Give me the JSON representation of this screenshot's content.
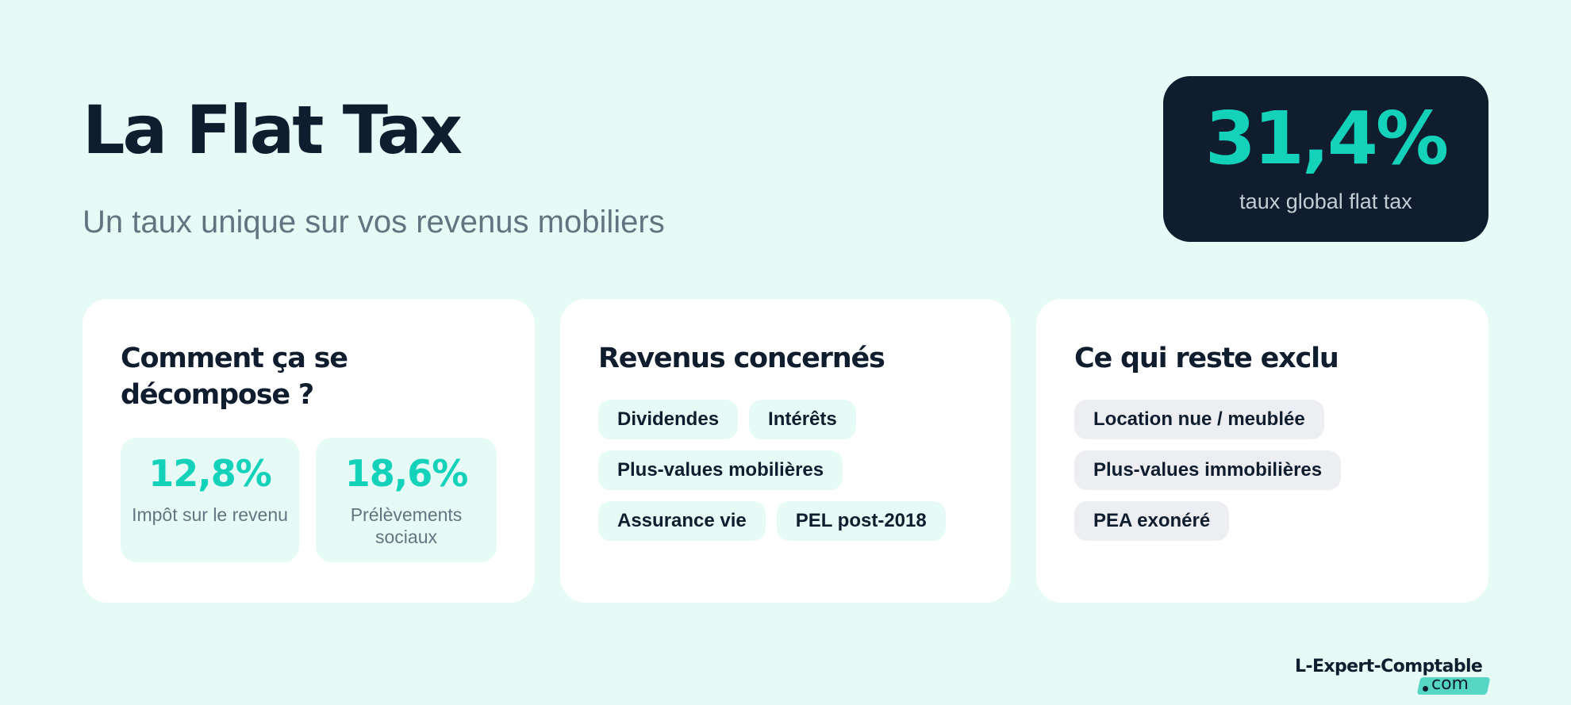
{
  "header": {
    "title": "La Flat Tax",
    "subtitle": "Un taux unique sur vos revenus mobiliers"
  },
  "rate": {
    "value": "31,4%",
    "label": "taux global flat tax"
  },
  "cards": {
    "breakdown": {
      "title": "Comment ça se décompose ?",
      "stats": [
        {
          "value": "12,8%",
          "label": "Impôt sur le revenu"
        },
        {
          "value": "18,6%",
          "label": "Prélèvements sociaux"
        }
      ]
    },
    "included": {
      "title": "Revenus concernés",
      "tags": [
        "Dividendes",
        "Intérêts",
        "Plus-values mobilières",
        "Assurance vie",
        "PEL post-2018"
      ]
    },
    "excluded": {
      "title": "Ce qui reste exclu",
      "tags": [
        "Location nue / meublée",
        "Plus-values immobilières",
        "PEA exonéré"
      ]
    }
  },
  "logo": {
    "name": "L-Expert-Comptable",
    "suffix": "com"
  },
  "colors": {
    "background": "#e6fbf6",
    "navy": "#0f1d2e",
    "accent": "#14d1b9",
    "muted": "#617580",
    "tag_grey": "#eceef1"
  }
}
